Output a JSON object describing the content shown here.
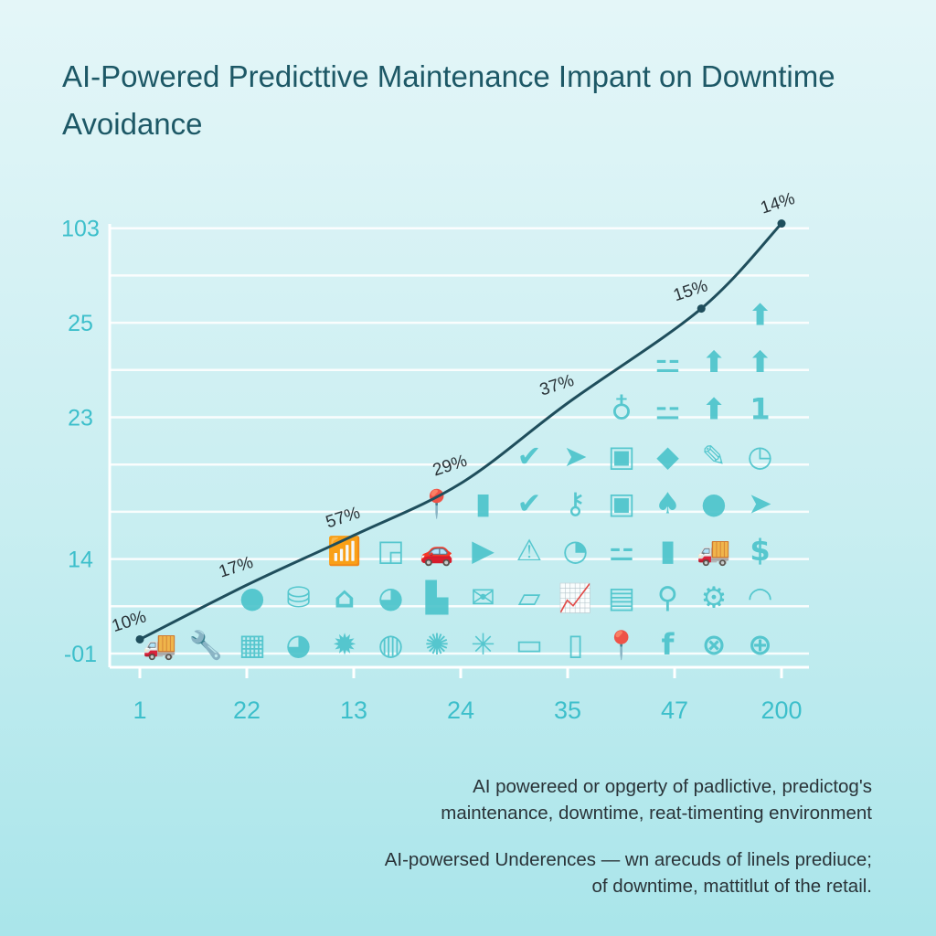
{
  "chart_data": {
    "type": "line",
    "title": "AI-Powered Predicttive Maintenance Impant on Downtime Avoidance",
    "x_tick_labels": [
      "1",
      "22",
      "13",
      "24",
      "35",
      "47",
      "200"
    ],
    "y_tick_labels": [
      {
        "label": "-01",
        "level": 0
      },
      {
        "label": "14",
        "level": 2
      },
      {
        "label": "23",
        "level": 5
      },
      {
        "label": "25",
        "level": 7
      },
      {
        "label": "103",
        "level": 9
      }
    ],
    "grid": true,
    "gridline_levels": [
      0,
      1,
      2,
      3,
      4,
      5,
      6,
      7,
      8,
      9
    ],
    "series": [
      {
        "points": [
          {
            "x": 0,
            "level": 0.3,
            "label": "10%"
          },
          {
            "x": 1,
            "level": 1.45,
            "label": "17%"
          },
          {
            "x": 2,
            "level": 2.5,
            "label": "57%"
          },
          {
            "x": 3,
            "level": 3.6,
            "label": "29%"
          },
          {
            "x": 4,
            "level": 5.3,
            "label": "37%"
          },
          {
            "x": 5.25,
            "level": 7.3,
            "label": "15%"
          },
          {
            "x": 6,
            "level": 9.1,
            "label": "14%"
          }
        ]
      }
    ],
    "colors": {
      "line": "#1f4e5c",
      "axis_labels": "#3dbfcb",
      "icons": "#4ac3cb",
      "title": "#1d5866",
      "grid": "#ffffff"
    },
    "icon_columns": [
      [
        "🚚"
      ],
      [
        "🔧"
      ],
      [
        "▦",
        "●"
      ],
      [
        "◕",
        "⛁"
      ],
      [
        "✹",
        "⌂",
        "📶"
      ],
      [
        "◍",
        "◕",
        "◲"
      ],
      [
        "✺",
        "▙",
        "🚗",
        "📍"
      ],
      [
        "✳",
        "✉",
        "▶",
        "▮"
      ],
      [
        "▭",
        "▱",
        "⚠",
        "✔",
        "✔"
      ],
      [
        "▯",
        "📈",
        "◔",
        "⚷",
        "➤"
      ],
      [
        "📍",
        "▤",
        "⚍",
        "▣",
        "▣",
        "♁"
      ],
      [
        "f",
        "⚲",
        "▮",
        "♠",
        "◆",
        "⚍",
        "⚍"
      ],
      [
        "⊗",
        "⚙",
        "🚚",
        "●",
        "✎",
        "⬆",
        "⬆"
      ],
      [
        "⊕",
        "◠",
        "$",
        "➤",
        "◷",
        "1",
        "⬆",
        "⬆"
      ]
    ]
  },
  "notes": [
    {
      "line1": "AI powereed or opgerty of padlictive, predictog's",
      "line2": "maintenance, downtime, reat-timenting environment"
    },
    {
      "line1": "AI-powersed Underences — wn arecuds of linels prediuce;",
      "line2": "of downtime, mattitlut of the retail."
    }
  ]
}
